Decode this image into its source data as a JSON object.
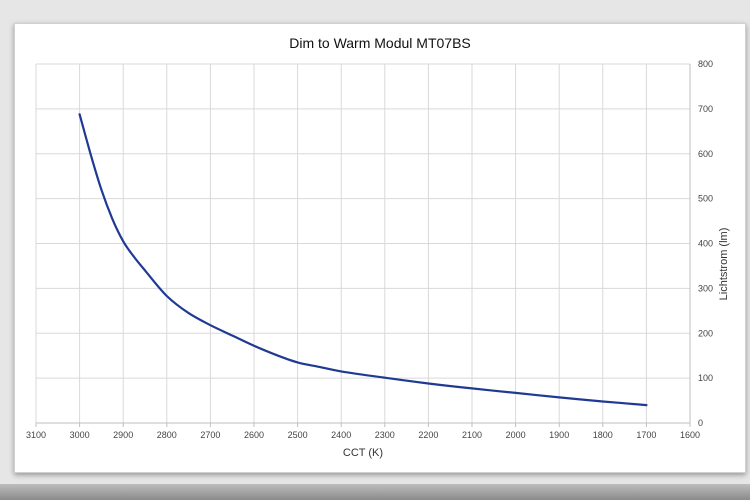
{
  "chart_data": {
    "type": "line",
    "title": "Dim to Warm Modul MT07BS",
    "xlabel": "CCT (K)",
    "ylabel": "Lichtstrom (lm)",
    "xlim": [
      3100,
      1600
    ],
    "x_reversed": true,
    "ylim": [
      0,
      800
    ],
    "y_axis_position": "right",
    "grid": true,
    "x_ticks": [
      3100,
      3000,
      2900,
      2800,
      2700,
      2600,
      2500,
      2400,
      2300,
      2200,
      2100,
      2000,
      1900,
      1800,
      1700,
      1600
    ],
    "y_ticks": [
      0,
      100,
      200,
      300,
      400,
      500,
      600,
      700,
      800
    ],
    "series": [
      {
        "color": "#1f3a93",
        "x": [
          3000,
          2975,
          2950,
          2925,
          2900,
          2875,
          2850,
          2800,
          2750,
          2700,
          2650,
          2600,
          2550,
          2500,
          2450,
          2400,
          2300,
          2200,
          2100,
          2000,
          1900,
          1800,
          1700
        ],
        "y": [
          688,
          600,
          520,
          455,
          405,
          370,
          340,
          283,
          245,
          218,
          195,
          172,
          152,
          135,
          125,
          115,
          101,
          88,
          77,
          67,
          57,
          48,
          40
        ]
      }
    ]
  }
}
